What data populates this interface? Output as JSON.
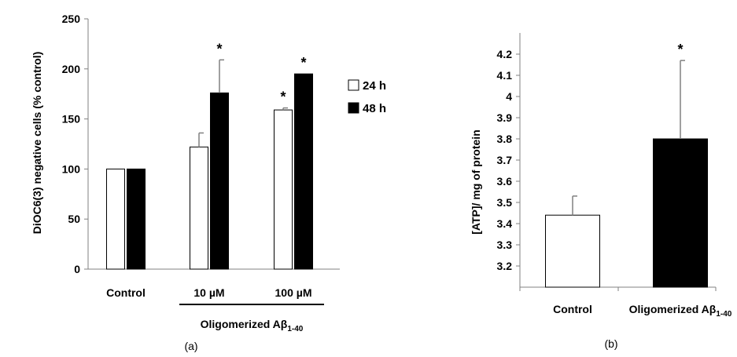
{
  "chart_data": [
    {
      "type": "bar",
      "panel_label": "(a)",
      "ylabel": "DiOC6(3) negative cells (% control)",
      "ylim": [
        0,
        250
      ],
      "yticks": [
        "0",
        "50",
        "100",
        "150",
        "200",
        "250"
      ],
      "categories": [
        "Control",
        "10 µM",
        "100 µM"
      ],
      "group_label_main": "Oligomerized Aβ",
      "group_label_sub": "1-40",
      "series": [
        {
          "name": "24 h",
          "color": "#ffffff",
          "values": [
            100,
            122,
            159
          ],
          "errors": [
            0,
            14,
            2
          ],
          "sig": [
            "",
            "",
            "*"
          ]
        },
        {
          "name": "48 h",
          "color": "#000000",
          "values": [
            100,
            176,
            195
          ],
          "errors": [
            0,
            33,
            0
          ],
          "sig": [
            "",
            "*",
            "*"
          ]
        }
      ],
      "legend": [
        "24 h",
        "48 h"
      ]
    },
    {
      "type": "bar",
      "panel_label": "(b)",
      "ylabel": "[ATP]/ mg of protein",
      "ylim": [
        3.1,
        4.3
      ],
      "yticks": [
        "3.2",
        "3.3",
        "3.4",
        "3.5",
        "3.6",
        "3.7",
        "3.8",
        "3.9",
        "4",
        "4.1",
        "4.2"
      ],
      "categories": [
        "Control",
        "Oligomerized Aβ"
      ],
      "category_sub": [
        "",
        "1-40"
      ],
      "values": [
        3.44,
        3.8
      ],
      "errors": [
        0.09,
        0.37
      ],
      "colors": [
        "#ffffff",
        "#000000"
      ],
      "sig": [
        "",
        "*"
      ]
    }
  ]
}
